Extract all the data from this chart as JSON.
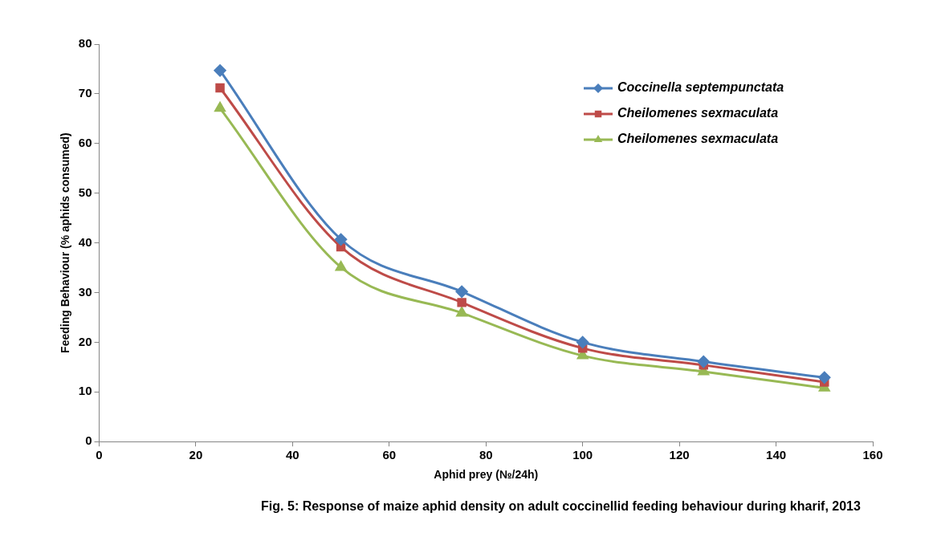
{
  "chart_data": {
    "type": "line",
    "xlabel": "Aphid prey (№/24h)",
    "ylabel": "Feeding Behaviour (% aphids consumed)",
    "annotations": [
      "Fig. 5: Response of maize aphid density on adult coccinellid feeding behaviour during kharif, 2013"
    ],
    "x": [
      25,
      50,
      75,
      100,
      125,
      150
    ],
    "series": [
      {
        "name": "Coccinella septempunctata",
        "color": "#4a7ebb",
        "marker": "diamond",
        "values": [
          74.7,
          40.7,
          30.2,
          20,
          16.1,
          12.9
        ]
      },
      {
        "name": "Cheilomenes sexmaculata",
        "color": "#be4b48",
        "marker": "square",
        "values": [
          71.2,
          39.2,
          28,
          18.8,
          15.4,
          12
        ]
      },
      {
        "name": "Cheilomenes sexmaculata",
        "color": "#98b954",
        "marker": "triangle",
        "values": [
          67.1,
          35.1,
          25.9,
          17.3,
          14.1,
          10.8
        ]
      }
    ],
    "xlim": [
      0,
      160
    ],
    "xticks": [
      0,
      20,
      40,
      60,
      80,
      100,
      120,
      140,
      160
    ],
    "ylim": [
      0,
      80
    ],
    "yticks": [
      0,
      10,
      20,
      30,
      40,
      50,
      60,
      70,
      80
    ],
    "grid": false,
    "legend": "top right",
    "line_style": "solid"
  }
}
